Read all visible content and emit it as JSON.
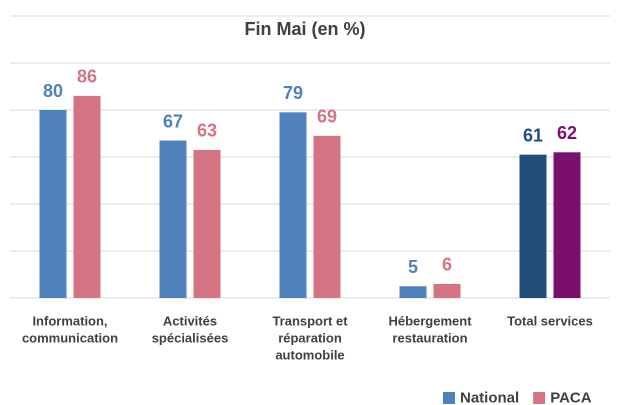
{
  "chart_data": {
    "type": "bar",
    "title": "Fin Mai (en %)",
    "categories": [
      [
        "Information,",
        "communication"
      ],
      [
        "Activités",
        "spécialisées"
      ],
      [
        "Transport et",
        "réparation",
        "automobile"
      ],
      [
        "Hébergement",
        "restauration"
      ],
      [
        "Total services"
      ]
    ],
    "series": [
      {
        "name": "National",
        "color": "#4f81bd",
        "colors": [
          "#4f81bd",
          "#4f81bd",
          "#4f81bd",
          "#4f81bd",
          "#1f4e79"
        ],
        "values": [
          80,
          67,
          79,
          5,
          61
        ]
      },
      {
        "name": "PACA",
        "color": "#d47381",
        "colors": [
          "#d47381",
          "#d47381",
          "#d47381",
          "#d47381",
          "#7b0f6e"
        ],
        "values": [
          86,
          63,
          69,
          6,
          62
        ]
      }
    ],
    "ylim": [
      0,
      120
    ],
    "yticks": [
      0,
      20,
      40,
      60,
      80,
      100,
      120
    ],
    "grid": true,
    "legend": "bottom-right"
  }
}
